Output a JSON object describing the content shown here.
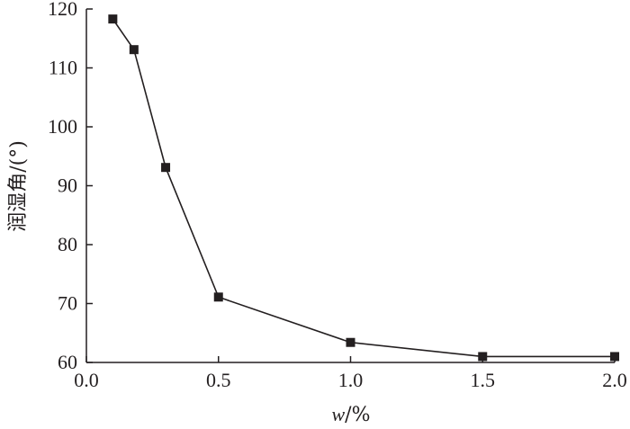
{
  "chart_data": {
    "type": "line",
    "xlabel": "w/%",
    "ylabel": "润湿角/(°)",
    "xlim": [
      0.0,
      2.0
    ],
    "ylim": [
      60,
      120
    ],
    "xticks": [
      "0.0",
      "0.5",
      "1.0",
      "1.5",
      "2.0"
    ],
    "yticks": [
      "60",
      "70",
      "80",
      "90",
      "100",
      "110",
      "120"
    ],
    "grid": false,
    "series": [
      {
        "marker": "square",
        "color": "#231f20",
        "x": [
          0.1,
          0.18,
          0.3,
          0.5,
          1.0,
          1.5,
          2.0
        ],
        "y": [
          118.3,
          113.1,
          93.1,
          71.1,
          63.4,
          61.0,
          61.0
        ]
      }
    ]
  }
}
